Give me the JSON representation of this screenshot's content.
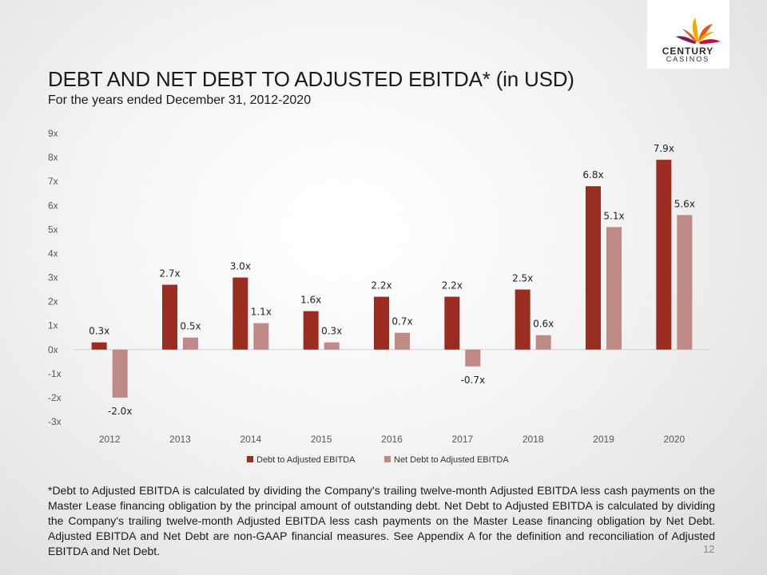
{
  "header": {
    "title": "DEBT AND NET DEBT TO ADJUSTED EBITDA* (in USD)",
    "subtitle": "For the years ended December 31, 2012-2020"
  },
  "logo": {
    "line1": "CENTURY",
    "line2": "CASINOS",
    "icon": "century-casinos-burst-logo",
    "colors": [
      "#c8102e",
      "#f5a800",
      "#7a1f5c",
      "#e05a1f"
    ]
  },
  "colors": {
    "debt": "#9b2d20",
    "net_debt": "#bf8a86",
    "axis": "#d0d0d0"
  },
  "chart_data": {
    "type": "bar",
    "title": "",
    "xlabel": "",
    "ylabel": "",
    "categories": [
      "2012",
      "2013",
      "2014",
      "2015",
      "2016",
      "2017",
      "2018",
      "2019",
      "2020"
    ],
    "series": [
      {
        "name": "Debt to Adjusted EBITDA",
        "values": [
          0.3,
          2.7,
          3.0,
          1.6,
          2.2,
          2.2,
          2.5,
          6.8,
          7.9
        ],
        "labels": [
          "0.3x",
          "2.7x",
          "3.0x",
          "1.6x",
          "2.2x",
          "2.2x",
          "2.5x",
          "6.8x",
          "7.9x"
        ]
      },
      {
        "name": "Net Debt to Adjusted EBITDA",
        "values": [
          -2.0,
          0.5,
          1.1,
          0.3,
          0.7,
          -0.7,
          0.6,
          5.1,
          5.6
        ],
        "labels": [
          "-2.0x",
          "0.5x",
          "1.1x",
          "0.3x",
          "0.7x",
          "-0.7x",
          "0.6x",
          "5.1x",
          "5.6x"
        ]
      }
    ],
    "ylim": [
      -3,
      9
    ],
    "yticks": [
      9,
      8,
      7,
      6,
      5,
      4,
      3,
      2,
      1,
      0,
      -1,
      -2,
      -3
    ],
    "ytick_labels": [
      "9x",
      "8x",
      "7x",
      "6x",
      "5x",
      "4x",
      "3x",
      "2x",
      "1x",
      "0x",
      "-1x",
      "-2x",
      "-3x"
    ],
    "grid": false,
    "legend_position": "bottom"
  },
  "footnote": "*Debt to Adjusted EBITDA is calculated by dividing the Company's trailing twelve-month Adjusted EBITDA less cash payments on the Master Lease financing obligation by the principal amount of outstanding debt. Net Debt to Adjusted EBITDA is calculated by dividing the Company's trailing twelve-month Adjusted EBITDA less cash payments on the Master Lease financing obligation by Net Debt. Adjusted EBITDA and Net Debt are non-GAAP financial measures. See Appendix A for the definition and reconciliation of Adjusted EBITDA and Net Debt.",
  "page_number": "12"
}
